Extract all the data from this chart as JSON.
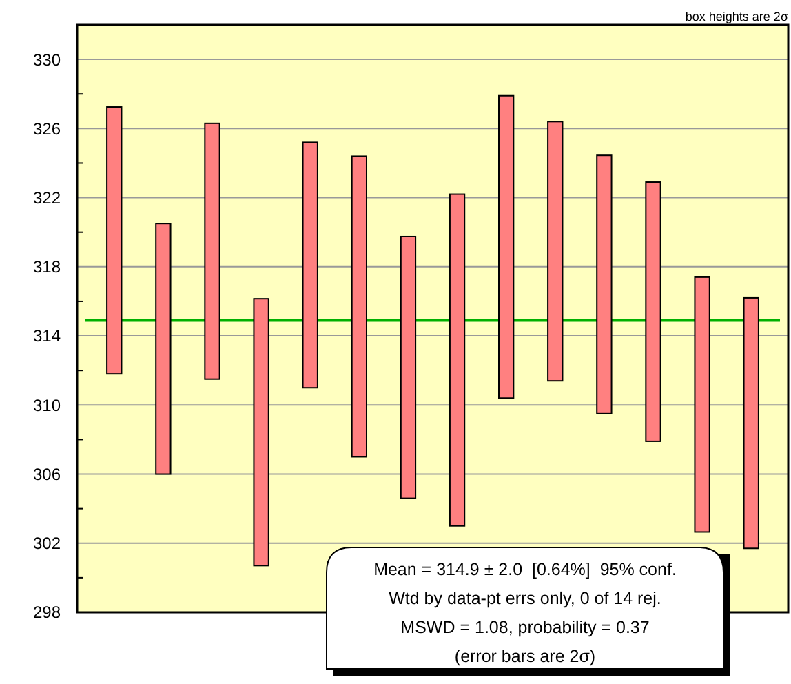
{
  "chart_data": {
    "type": "bar",
    "categories": [
      null,
      null,
      null,
      null,
      null,
      null,
      null,
      null,
      null,
      null,
      null,
      null,
      null,
      null
    ],
    "base": [
      311.8,
      306.0,
      311.5,
      300.7,
      311.0,
      307.0,
      304.6,
      303.0,
      310.4,
      311.4,
      309.5,
      307.9,
      302.65,
      301.7
    ],
    "values": [
      15.45,
      14.5,
      14.8,
      15.45,
      14.2,
      17.4,
      15.15,
      19.2,
      17.5,
      15.0,
      14.95,
      15.0,
      14.75,
      14.5
    ],
    "color": "#ff8080",
    "ylim": [
      298,
      332
    ],
    "yticks": [
      298,
      {
        "value": 300,
        "label": null
      },
      302,
      {
        "value": 304,
        "label": null
      },
      306,
      {
        "value": 308,
        "label": null
      },
      310,
      {
        "value": 312,
        "label": null
      },
      314,
      {
        "value": 316,
        "label": null
      },
      318,
      {
        "value": 320,
        "label": null
      },
      322,
      {
        "value": 324,
        "label": null
      },
      326,
      {
        "value": 328,
        "label": null
      },
      330
    ],
    "grid": "y",
    "ref_lines": [
      {
        "axis": "y",
        "value": 314.9,
        "color": "#00b000"
      }
    ],
    "annotations": [
      "box heights are 2σ",
      "Mean = 314.9 ± 2.0  [0.64%]  95% conf.",
      "Wtd by data-pt errs only, 0 of 14 rej.",
      "MSWD = 1.08, probability = 0.37",
      "(error bars are 2σ)"
    ]
  }
}
